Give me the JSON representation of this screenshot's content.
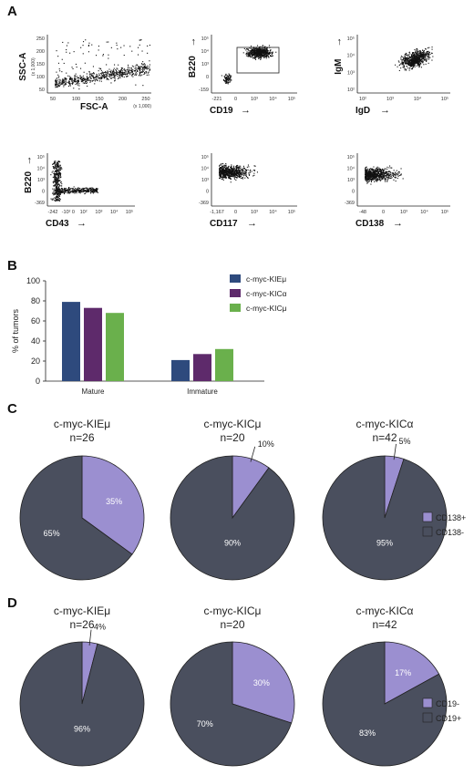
{
  "panels": {
    "a": "A",
    "b": "B",
    "c": "C",
    "d": "D"
  },
  "flow_plots": [
    {
      "y_label": "SSC-A",
      "y_scale": "(x 1,000)",
      "x_label": "FSC-A",
      "x_scale": "(x 1,000)",
      "y_ticks": [
        "250",
        "200",
        "150",
        "100",
        "50"
      ],
      "x_ticks": [
        "50",
        "100",
        "150",
        "200",
        "250"
      ],
      "x_arrow": false,
      "y_arrow": false
    },
    {
      "y_label": "B220",
      "x_label": "CD19",
      "y_ticks": [
        "10⁵",
        "10⁴",
        "10³",
        "0",
        "-159"
      ],
      "x_ticks": [
        "-221",
        "0",
        "10³",
        "10⁴",
        "10⁵"
      ],
      "x_arrow": true,
      "y_arrow": true,
      "gate": true
    },
    {
      "y_label": "IgM",
      "x_label": "IgD",
      "y_ticks": [
        "10⁵",
        "10⁴",
        "10³",
        "10²"
      ],
      "x_ticks": [
        "10²",
        "10³",
        "10⁴",
        "10⁵"
      ],
      "x_arrow": true,
      "y_arrow": true
    },
    {
      "y_label": "B220",
      "x_label": "CD43",
      "y_ticks": [
        "10⁵",
        "10⁴",
        "10³",
        "0",
        "-369"
      ],
      "x_ticks": [
        "-242",
        "-10² 0",
        "10²",
        "10³",
        "10⁴",
        "10⁵"
      ],
      "x_arrow": true,
      "y_arrow": true
    },
    {
      "y_label": "",
      "x_label": "CD117",
      "y_ticks": [
        "10⁵",
        "10⁴",
        "10³",
        "0",
        "-369"
      ],
      "x_ticks": [
        "-1,167",
        "0",
        "10³",
        "10⁴",
        "10⁵"
      ],
      "x_arrow": true,
      "y_arrow": false
    },
    {
      "y_label": "",
      "x_label": "CD138",
      "y_ticks": [
        "10⁵",
        "10⁴",
        "10³",
        "0",
        "-369"
      ],
      "x_ticks": [
        "-48",
        "0",
        "10³",
        "10⁴",
        "10⁵"
      ],
      "x_arrow": true,
      "y_arrow": false
    }
  ],
  "chart_data": [
    {
      "type": "bar",
      "ylabel": "% of tumors",
      "ylim": [
        0,
        100
      ],
      "yticks": [
        0,
        20,
        40,
        60,
        80,
        100
      ],
      "categories": [
        "Mature",
        "Immature"
      ],
      "series": [
        {
          "name": "c-myc-KIEμ",
          "color": "#2e4a7d",
          "values": [
            79,
            21
          ]
        },
        {
          "name": "c-myc-KICα",
          "color": "#5e2a6b",
          "values": [
            73,
            27
          ]
        },
        {
          "name": "c-myc-KICμ",
          "color": "#6ab04c",
          "values": [
            68,
            32
          ]
        }
      ],
      "legend_position": "top-right"
    },
    {
      "type": "pie",
      "panel": "C",
      "pies": [
        {
          "title": "c-myc-KIEμ",
          "n": "n=26",
          "values": [
            35,
            65
          ],
          "labels": [
            "35%",
            "65%"
          ]
        },
        {
          "title": "c-myc-KICμ",
          "n": "n=20",
          "values": [
            10,
            90
          ],
          "labels": [
            "10%",
            "90%"
          ]
        },
        {
          "title": "c-myc-KICα",
          "n": "n=42",
          "values": [
            5,
            95
          ],
          "labels": [
            "5%",
            "95%"
          ]
        }
      ],
      "legend": [
        {
          "name": "CD138+",
          "color": "#9b8fd0"
        },
        {
          "name": "CD138-",
          "color": "#4a4f5e"
        }
      ]
    },
    {
      "type": "pie",
      "panel": "D",
      "pies": [
        {
          "title": "c-myc-KIEμ",
          "n": "n=26",
          "values": [
            4,
            96
          ],
          "labels": [
            "4%",
            "96%"
          ]
        },
        {
          "title": "c-myc-KICμ",
          "n": "n=20",
          "values": [
            30,
            70
          ],
          "labels": [
            "30%",
            "70%"
          ]
        },
        {
          "title": "c-myc-KICα",
          "n": "n=42",
          "values": [
            17,
            83
          ],
          "labels": [
            "17%",
            "83%"
          ]
        }
      ],
      "legend": [
        {
          "name": "CD19-",
          "color": "#9b8fd0"
        },
        {
          "name": "CD19+",
          "color": "#4a4f5e"
        }
      ]
    }
  ]
}
